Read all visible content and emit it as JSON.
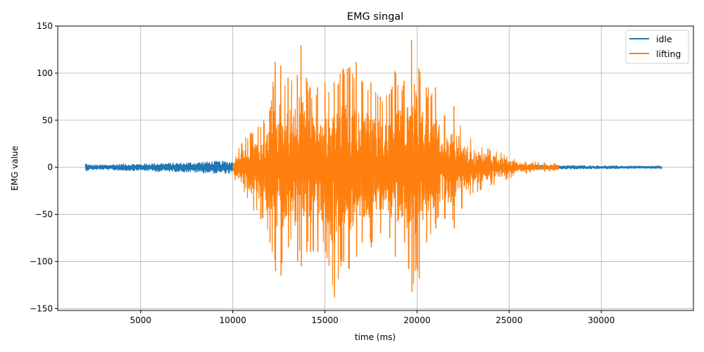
{
  "chart_data": {
    "type": "line",
    "title": "EMG singal",
    "xlabel": "time (ms)",
    "ylabel": "EMG value",
    "xlim": [
      500,
      35000
    ],
    "ylim": [
      -152,
      150
    ],
    "xticks": [
      5000,
      10000,
      15000,
      20000,
      25000,
      30000
    ],
    "xtick_labels": [
      "5000",
      "10000",
      "15000",
      "20000",
      "25000",
      "30000"
    ],
    "yticks": [
      -150,
      -100,
      -50,
      0,
      50,
      100,
      150
    ],
    "ytick_labels": [
      "−150",
      "−100",
      "−50",
      "0",
      "50",
      "100",
      "150"
    ],
    "grid": true,
    "legend_position": "top-right",
    "series": [
      {
        "name": "idle",
        "color": "#1f77b4",
        "envelope": [
          [
            2000,
            5
          ],
          [
            2200,
            3
          ],
          [
            3000,
            3
          ],
          [
            4000,
            4
          ],
          [
            5000,
            4
          ],
          [
            6000,
            5
          ],
          [
            7000,
            5
          ],
          [
            8000,
            6
          ],
          [
            9000,
            7
          ],
          [
            10000,
            7
          ],
          [
            11000,
            3
          ],
          [
            14000,
            3
          ],
          [
            20000,
            3
          ],
          [
            25000,
            3
          ],
          [
            27500,
            2.5
          ],
          [
            30000,
            2
          ],
          [
            32000,
            1.5
          ],
          [
            33300,
            1
          ]
        ]
      },
      {
        "name": "lifting",
        "color": "#ff7f0e",
        "peaks": [
          [
            10000,
            5
          ],
          [
            10200,
            20
          ],
          [
            10500,
            27
          ],
          [
            11000,
            40
          ],
          [
            11500,
            45
          ],
          [
            12000,
            60
          ],
          [
            12300,
            112
          ],
          [
            12600,
            108
          ],
          [
            13000,
            95
          ],
          [
            13500,
            98
          ],
          [
            13700,
            130
          ],
          [
            14000,
            95
          ],
          [
            14200,
            85
          ],
          [
            14600,
            85
          ],
          [
            15000,
            90
          ],
          [
            15500,
            90
          ],
          [
            16000,
            105
          ],
          [
            16300,
            106
          ],
          [
            16700,
            112
          ],
          [
            17000,
            92
          ],
          [
            17500,
            90
          ],
          [
            18000,
            75
          ],
          [
            18500,
            78
          ],
          [
            18800,
            102
          ],
          [
            19300,
            92
          ],
          [
            19700,
            135
          ],
          [
            20000,
            75
          ],
          [
            20100,
            105
          ],
          [
            20500,
            85
          ],
          [
            21000,
            85
          ],
          [
            21500,
            55
          ],
          [
            22000,
            65
          ],
          [
            22600,
            40
          ],
          [
            23000,
            30
          ],
          [
            23500,
            25
          ],
          [
            24000,
            20
          ],
          [
            24500,
            17
          ],
          [
            25000,
            12
          ],
          [
            25500,
            8
          ],
          [
            26000,
            7
          ],
          [
            27000,
            5
          ],
          [
            27700,
            4
          ]
        ],
        "troughs": [
          [
            10000,
            -5
          ],
          [
            10200,
            -20
          ],
          [
            10500,
            -25
          ],
          [
            11000,
            -45
          ],
          [
            11500,
            -55
          ],
          [
            12000,
            -80
          ],
          [
            12300,
            -110
          ],
          [
            12600,
            -115
          ],
          [
            13000,
            -85
          ],
          [
            13500,
            -100
          ],
          [
            13700,
            -105
          ],
          [
            14000,
            -90
          ],
          [
            14200,
            -90
          ],
          [
            14600,
            -90
          ],
          [
            15000,
            -90
          ],
          [
            15500,
            -138
          ],
          [
            16000,
            -100
          ],
          [
            16300,
            -108
          ],
          [
            16700,
            -95
          ],
          [
            17000,
            -80
          ],
          [
            17500,
            -85
          ],
          [
            18000,
            -70
          ],
          [
            18500,
            -75
          ],
          [
            18800,
            -95
          ],
          [
            19300,
            -80
          ],
          [
            19700,
            -132
          ],
          [
            20000,
            -110
          ],
          [
            20100,
            -118
          ],
          [
            20500,
            -80
          ],
          [
            21000,
            -65
          ],
          [
            21500,
            -55
          ],
          [
            22000,
            -65
          ],
          [
            22600,
            -40
          ],
          [
            23000,
            -30
          ],
          [
            23500,
            -25
          ],
          [
            24000,
            -20
          ],
          [
            24500,
            -17
          ],
          [
            25000,
            -12
          ],
          [
            25500,
            -8
          ],
          [
            26000,
            -7
          ],
          [
            27000,
            -5
          ],
          [
            27700,
            -4
          ]
        ]
      }
    ]
  }
}
